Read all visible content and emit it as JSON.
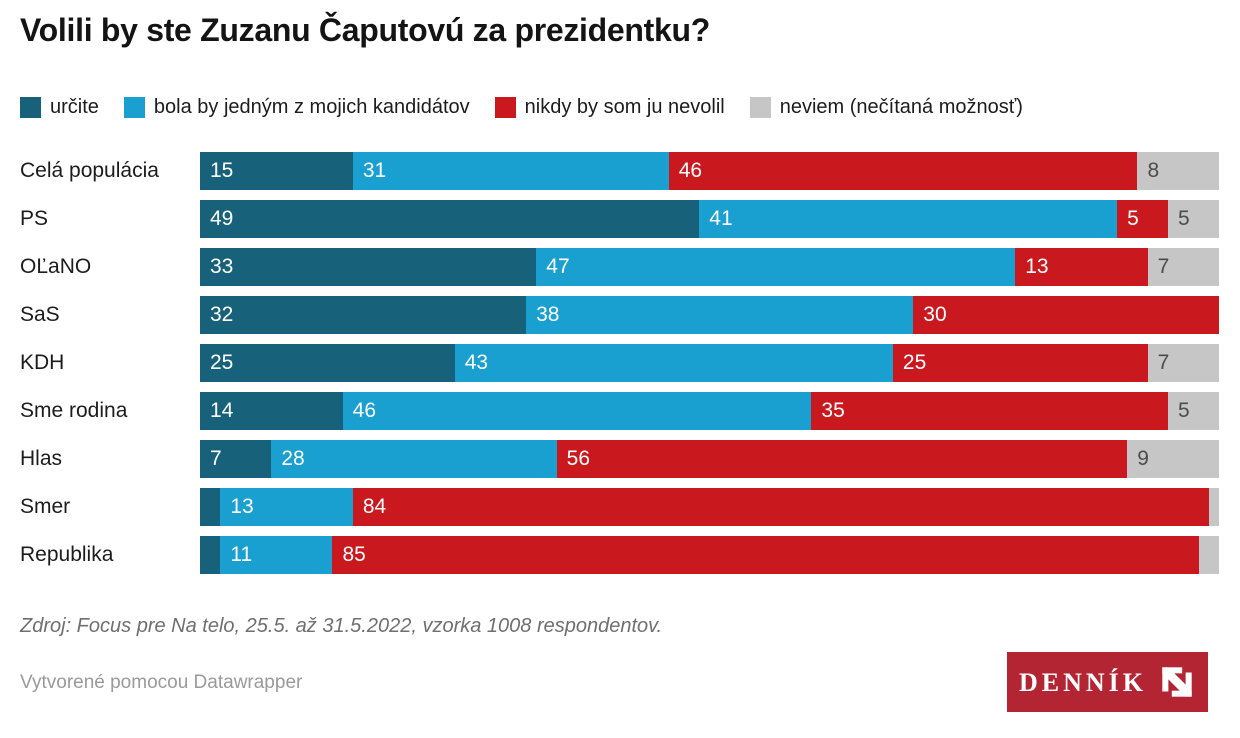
{
  "title": "Volili by ste Zuzanu Čaputovú za prezidentku?",
  "colors": {
    "certain": "#18617b",
    "candidate": "#1aa0d0",
    "never": "#c9191e",
    "dontknow": "#c6c6c6",
    "gray_label_text": "#4c4c4c",
    "logo_background": "#b42533",
    "logo_text_color": "#ffffff"
  },
  "legend": [
    {
      "key": "certain",
      "label": "určite"
    },
    {
      "key": "candidate",
      "label": "bola by jedným z mojich kandidátov"
    },
    {
      "key": "never",
      "label": "nikdy by som ju nevolil"
    },
    {
      "key": "dontknow",
      "label": "neviem (nečítaná možnosť)"
    }
  ],
  "rows": [
    {
      "label": "Celá populácia",
      "segments": [
        {
          "key": "certain",
          "value": 15,
          "text": "15"
        },
        {
          "key": "candidate",
          "value": 31,
          "text": "31"
        },
        {
          "key": "never",
          "value": 46,
          "text": "46"
        },
        {
          "key": "dontknow",
          "value": 8,
          "text": "8"
        }
      ]
    },
    {
      "label": "PS",
      "segments": [
        {
          "key": "certain",
          "value": 49,
          "text": "49"
        },
        {
          "key": "candidate",
          "value": 41,
          "text": "41"
        },
        {
          "key": "never",
          "value": 5,
          "text": "5"
        },
        {
          "key": "dontknow",
          "value": 5,
          "text": "5"
        }
      ]
    },
    {
      "label": "OĽaNO",
      "segments": [
        {
          "key": "certain",
          "value": 33,
          "text": "33"
        },
        {
          "key": "candidate",
          "value": 47,
          "text": "47"
        },
        {
          "key": "never",
          "value": 13,
          "text": "13"
        },
        {
          "key": "dontknow",
          "value": 7,
          "text": "7"
        }
      ]
    },
    {
      "label": "SaS",
      "segments": [
        {
          "key": "certain",
          "value": 32,
          "text": "32"
        },
        {
          "key": "candidate",
          "value": 38,
          "text": "38"
        },
        {
          "key": "never",
          "value": 30,
          "text": "30"
        },
        {
          "key": "dontknow",
          "value": 0,
          "text": ""
        }
      ]
    },
    {
      "label": "KDH",
      "segments": [
        {
          "key": "certain",
          "value": 25,
          "text": "25"
        },
        {
          "key": "candidate",
          "value": 43,
          "text": "43"
        },
        {
          "key": "never",
          "value": 25,
          "text": "25"
        },
        {
          "key": "dontknow",
          "value": 7,
          "text": "7"
        }
      ]
    },
    {
      "label": "Sme rodina",
      "segments": [
        {
          "key": "certain",
          "value": 14,
          "text": "14"
        },
        {
          "key": "candidate",
          "value": 46,
          "text": "46"
        },
        {
          "key": "never",
          "value": 35,
          "text": "35"
        },
        {
          "key": "dontknow",
          "value": 5,
          "text": "5"
        }
      ]
    },
    {
      "label": "Hlas",
      "segments": [
        {
          "key": "certain",
          "value": 7,
          "text": "7"
        },
        {
          "key": "candidate",
          "value": 28,
          "text": "28"
        },
        {
          "key": "never",
          "value": 56,
          "text": "56"
        },
        {
          "key": "dontknow",
          "value": 9,
          "text": "9"
        }
      ]
    },
    {
      "label": "Smer",
      "segments": [
        {
          "key": "certain",
          "value": 2,
          "text": ""
        },
        {
          "key": "candidate",
          "value": 13,
          "text": "13"
        },
        {
          "key": "never",
          "value": 84,
          "text": "84"
        },
        {
          "key": "dontknow",
          "value": 1,
          "text": ""
        }
      ]
    },
    {
      "label": "Republika",
      "segments": [
        {
          "key": "certain",
          "value": 2,
          "text": ""
        },
        {
          "key": "candidate",
          "value": 11,
          "text": "11"
        },
        {
          "key": "never",
          "value": 85,
          "text": "85"
        },
        {
          "key": "dontknow",
          "value": 2,
          "text": ""
        }
      ]
    }
  ],
  "chart_data": {
    "type": "bar",
    "stacked": true,
    "orientation": "horizontal",
    "unit": "%",
    "xlim": [
      0,
      100
    ],
    "grid": false,
    "legend_position": "top",
    "title": "Volili by ste Zuzanu Čaputovú za prezidentku?",
    "categories": [
      "Celá populácia",
      "PS",
      "OĽaNO",
      "SaS",
      "KDH",
      "Sme rodina",
      "Hlas",
      "Smer",
      "Republika"
    ],
    "series": [
      {
        "name": "určite",
        "color": "#18617b",
        "values": [
          15,
          49,
          33,
          32,
          25,
          14,
          7,
          2,
          2
        ]
      },
      {
        "name": "bola by jedným z mojich kandidátov",
        "color": "#1aa0d0",
        "values": [
          31,
          41,
          47,
          38,
          43,
          46,
          28,
          13,
          11
        ]
      },
      {
        "name": "nikdy by som ju nevolil",
        "color": "#c9191e",
        "values": [
          46,
          5,
          13,
          30,
          25,
          35,
          56,
          84,
          85
        ]
      },
      {
        "name": "neviem (nečítaná možnosť)",
        "color": "#c6c6c6",
        "values": [
          8,
          5,
          7,
          0,
          7,
          5,
          9,
          1,
          2
        ]
      }
    ],
    "note": "unlabeled tiny segments estimated from bar widths"
  },
  "footer": {
    "source": "Zdroj: Focus pre Na telo, 25.5. až 31.5.2022, vzorka 1008 respondentov.",
    "attribution": "Vytvorené pomocou Datawrapper",
    "logo_text": "DENNÍK"
  }
}
